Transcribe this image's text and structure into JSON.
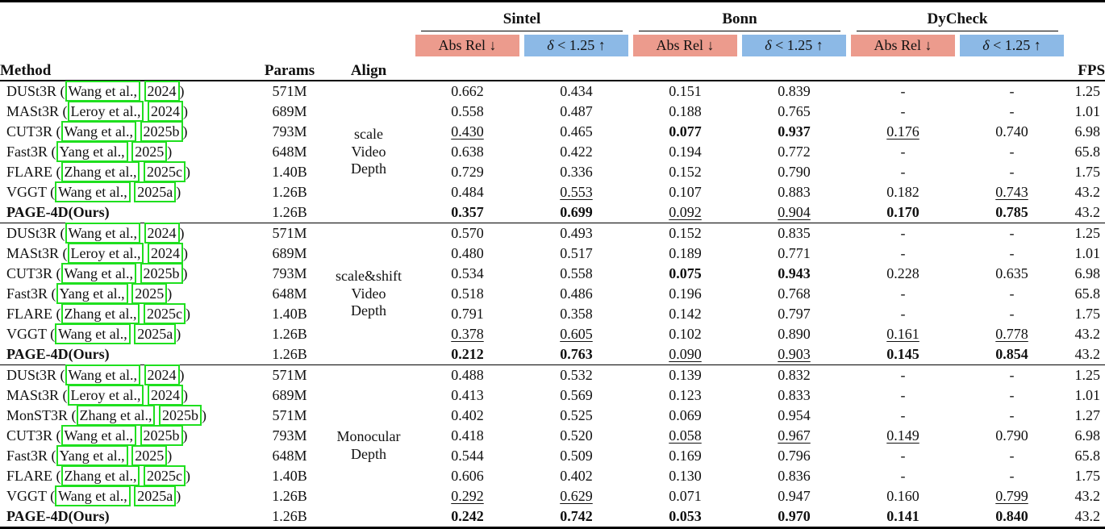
{
  "header": {
    "method": "Method",
    "params": "Params",
    "align": "Align",
    "fps": "FPS",
    "datasets": [
      {
        "name": "Sintel"
      },
      {
        "name": "Bonn"
      },
      {
        "name": "DyCheck"
      }
    ],
    "abs_rel_label": "Abs Rel ↓",
    "delta_label": "δ < 1.25 ↑"
  },
  "colors": {
    "abs_rel_bg": "#ec9b8d",
    "delta_bg": "#8cb9e6",
    "citation_box": "#1fdf1f"
  },
  "chart_data": {
    "type": "table",
    "title": "Depth estimation comparison across Sintel, Bonn and DyCheck (Abs Rel ↓, δ < 1.25 ↑, FPS)"
  },
  "groups": [
    {
      "align_lines": [
        "scale",
        "Video",
        "Depth"
      ],
      "rows": [
        {
          "method": "DUSt3R",
          "cite": [
            "Wang et al.,",
            "2024"
          ],
          "bold_method": false,
          "params": "571M",
          "values": [
            "0.662",
            "0.434",
            "0.151",
            "0.839",
            "-",
            "-"
          ],
          "styles": [
            "n",
            "n",
            "n",
            "n",
            "n",
            "n"
          ],
          "fps": "1.25"
        },
        {
          "method": "MASt3R",
          "cite": [
            "Leroy et al.,",
            "2024"
          ],
          "bold_method": false,
          "params": "689M",
          "values": [
            "0.558",
            "0.487",
            "0.188",
            "0.765",
            "-",
            "-"
          ],
          "styles": [
            "n",
            "n",
            "n",
            "n",
            "n",
            "n"
          ],
          "fps": "1.01"
        },
        {
          "method": "CUT3R",
          "cite": [
            "Wang et al.,",
            "2025b"
          ],
          "bold_method": false,
          "params": "793M",
          "values": [
            "0.430",
            "0.465",
            "0.077",
            "0.937",
            "0.176",
            "0.740"
          ],
          "styles": [
            "u",
            "n",
            "b",
            "b",
            "u",
            "n"
          ],
          "fps": "6.98"
        },
        {
          "method": "Fast3R",
          "cite": [
            "Yang et al.,",
            "2025"
          ],
          "bold_method": false,
          "params": "648M",
          "values": [
            "0.638",
            "0.422",
            "0.194",
            "0.772",
            "-",
            "-"
          ],
          "styles": [
            "n",
            "n",
            "n",
            "n",
            "n",
            "n"
          ],
          "fps": "65.8"
        },
        {
          "method": "FLARE",
          "cite": [
            "Zhang et al.,",
            "2025c"
          ],
          "bold_method": false,
          "params": "1.40B",
          "values": [
            "0.729",
            "0.336",
            "0.152",
            "0.790",
            "-",
            "-"
          ],
          "styles": [
            "n",
            "n",
            "n",
            "n",
            "n",
            "n"
          ],
          "fps": "1.75"
        },
        {
          "method": "VGGT",
          "cite": [
            "Wang et al.,",
            "2025a"
          ],
          "bold_method": false,
          "params": "1.26B",
          "values": [
            "0.484",
            "0.553",
            "0.107",
            "0.883",
            "0.182",
            "0.743"
          ],
          "styles": [
            "n",
            "u",
            "n",
            "n",
            "n",
            "u"
          ],
          "fps": "43.2"
        },
        {
          "method": "PAGE-4D(Ours)",
          "cite": null,
          "bold_method": true,
          "params": "1.26B",
          "values": [
            "0.357",
            "0.699",
            "0.092",
            "0.904",
            "0.170",
            "0.785"
          ],
          "styles": [
            "b",
            "b",
            "u",
            "u",
            "b",
            "b"
          ],
          "fps": "43.2"
        }
      ]
    },
    {
      "align_lines": [
        "scale&shift",
        "Video",
        "Depth"
      ],
      "rows": [
        {
          "method": "DUSt3R",
          "cite": [
            "Wang et al.,",
            "2024"
          ],
          "bold_method": false,
          "params": "571M",
          "values": [
            "0.570",
            "0.493",
            "0.152",
            "0.835",
            "-",
            "-"
          ],
          "styles": [
            "n",
            "n",
            "n",
            "n",
            "n",
            "n"
          ],
          "fps": "1.25"
        },
        {
          "method": "MASt3R",
          "cite": [
            "Leroy et al.,",
            "2024"
          ],
          "bold_method": false,
          "params": "689M",
          "values": [
            "0.480",
            "0.517",
            "0.189",
            "0.771",
            "-",
            "-"
          ],
          "styles": [
            "n",
            "n",
            "n",
            "n",
            "n",
            "n"
          ],
          "fps": "1.01"
        },
        {
          "method": "CUT3R",
          "cite": [
            "Wang et al.,",
            "2025b"
          ],
          "bold_method": false,
          "params": "793M",
          "values": [
            "0.534",
            "0.558",
            "0.075",
            "0.943",
            "0.228",
            "0.635"
          ],
          "styles": [
            "n",
            "n",
            "b",
            "b",
            "n",
            "n"
          ],
          "fps": "6.98"
        },
        {
          "method": "Fast3R",
          "cite": [
            "Yang et al.,",
            "2025"
          ],
          "bold_method": false,
          "params": "648M",
          "values": [
            "0.518",
            "0.486",
            "0.196",
            "0.768",
            "-",
            "-"
          ],
          "styles": [
            "n",
            "n",
            "n",
            "n",
            "n",
            "n"
          ],
          "fps": "65.8"
        },
        {
          "method": "FLARE",
          "cite": [
            "Zhang et al.,",
            "2025c"
          ],
          "bold_method": false,
          "params": "1.40B",
          "values": [
            "0.791",
            "0.358",
            "0.142",
            "0.797",
            "-",
            "-"
          ],
          "styles": [
            "n",
            "n",
            "n",
            "n",
            "n",
            "n"
          ],
          "fps": "1.75"
        },
        {
          "method": "VGGT",
          "cite": [
            "Wang et al.,",
            "2025a"
          ],
          "bold_method": false,
          "params": "1.26B",
          "values": [
            "0.378",
            "0.605",
            "0.102",
            "0.890",
            "0.161",
            "0.778"
          ],
          "styles": [
            "u",
            "u",
            "n",
            "n",
            "u",
            "u"
          ],
          "fps": "43.2"
        },
        {
          "method": "PAGE-4D(Ours)",
          "cite": null,
          "bold_method": true,
          "params": "1.26B",
          "values": [
            "0.212",
            "0.763",
            "0.090",
            "0.903",
            "0.145",
            "0.854"
          ],
          "styles": [
            "b",
            "b",
            "u",
            "u",
            "b",
            "b"
          ],
          "fps": "43.2"
        }
      ]
    },
    {
      "align_lines": [
        "Monocular",
        "Depth"
      ],
      "rows": [
        {
          "method": "DUSt3R",
          "cite": [
            "Wang et al.,",
            "2024"
          ],
          "bold_method": false,
          "params": "571M",
          "values": [
            "0.488",
            "0.532",
            "0.139",
            "0.832",
            "-",
            "-"
          ],
          "styles": [
            "n",
            "n",
            "n",
            "n",
            "n",
            "n"
          ],
          "fps": "1.25"
        },
        {
          "method": "MASt3R",
          "cite": [
            "Leroy et al.,",
            "2024"
          ],
          "bold_method": false,
          "params": "689M",
          "values": [
            "0.413",
            "0.569",
            "0.123",
            "0.833",
            "-",
            "-"
          ],
          "styles": [
            "n",
            "n",
            "n",
            "n",
            "n",
            "n"
          ],
          "fps": "1.01"
        },
        {
          "method": "MonST3R",
          "cite": [
            "Zhang et al.,",
            "2025b"
          ],
          "bold_method": false,
          "params": "571M",
          "values": [
            "0.402",
            "0.525",
            "0.069",
            "0.954",
            "-",
            "-"
          ],
          "styles": [
            "n",
            "n",
            "n",
            "n",
            "n",
            "n"
          ],
          "fps": "1.27"
        },
        {
          "method": "CUT3R",
          "cite": [
            "Wang et al.,",
            "2025b"
          ],
          "bold_method": false,
          "params": "793M",
          "values": [
            "0.418",
            "0.520",
            "0.058",
            "0.967",
            "0.149",
            "0.790"
          ],
          "styles": [
            "n",
            "n",
            "u",
            "u",
            "u",
            "n"
          ],
          "fps": "6.98"
        },
        {
          "method": "Fast3R",
          "cite": [
            "Yang et al.,",
            "2025"
          ],
          "bold_method": false,
          "params": "648M",
          "values": [
            "0.544",
            "0.509",
            "0.169",
            "0.796",
            "-",
            "-"
          ],
          "styles": [
            "n",
            "n",
            "n",
            "n",
            "n",
            "n"
          ],
          "fps": "65.8"
        },
        {
          "method": "FLARE",
          "cite": [
            "Zhang et al.,",
            "2025c"
          ],
          "bold_method": false,
          "params": "1.40B",
          "values": [
            "0.606",
            "0.402",
            "0.130",
            "0.836",
            "-",
            "-"
          ],
          "styles": [
            "n",
            "n",
            "n",
            "n",
            "n",
            "n"
          ],
          "fps": "1.75"
        },
        {
          "method": "VGGT",
          "cite": [
            "Wang et al.,",
            "2025a"
          ],
          "bold_method": false,
          "params": "1.26B",
          "values": [
            "0.292",
            "0.629",
            "0.071",
            "0.947",
            "0.160",
            "0.799"
          ],
          "styles": [
            "u",
            "u",
            "n",
            "n",
            "n",
            "u"
          ],
          "fps": "43.2"
        },
        {
          "method": "PAGE-4D(Ours)",
          "cite": null,
          "bold_method": true,
          "params": "1.26B",
          "values": [
            "0.242",
            "0.742",
            "0.053",
            "0.970",
            "0.141",
            "0.840"
          ],
          "styles": [
            "b",
            "b",
            "b",
            "b",
            "b",
            "b"
          ],
          "fps": "43.2"
        }
      ]
    }
  ]
}
